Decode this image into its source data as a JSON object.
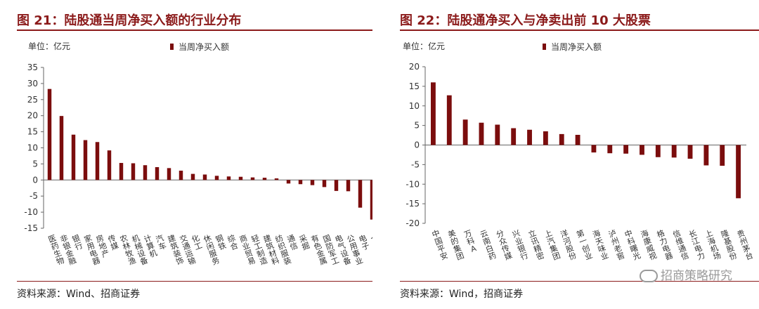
{
  "left": {
    "title": "图 21：陆股通当周净买入额的行业分布",
    "unit": "单位：亿元",
    "source": "资料来源：Wind、招商证券",
    "chart_data": {
      "type": "bar",
      "legend": [
        "当周净买入额"
      ],
      "legend_position": "top",
      "color": "#7b0d0d",
      "ylim": [
        -15,
        35
      ],
      "yticks": [
        -15,
        -10,
        -5,
        0,
        5,
        10,
        15,
        20,
        25,
        30,
        35
      ],
      "grid": false,
      "categories": [
        "医药生物",
        "非银金融",
        "银行",
        "家用电器",
        "房地产",
        "传媒",
        "农林牧渔",
        "机械设备",
        "计算机",
        "汽车",
        "建筑装饰",
        "交通运输",
        "化工",
        "休闲服务",
        "钢铁",
        "综合",
        "商业贸易",
        "轻工制造",
        "建筑材料",
        "纺织服装",
        "通信",
        "采掘",
        "有色金属",
        "国防军工",
        "电气设备",
        "公用事业",
        "电子",
        "食品饮料"
      ],
      "series": [
        {
          "name": "当周净买入额",
          "values": [
            28.3,
            19.9,
            14.1,
            12.4,
            11.8,
            9.2,
            5.3,
            5.2,
            4.6,
            4.0,
            3.7,
            2.9,
            1.9,
            1.7,
            1.3,
            1.1,
            1.0,
            0.8,
            0.7,
            0.5,
            -1.1,
            -1.3,
            -1.6,
            -2.2,
            -3.4,
            -3.5,
            -8.6,
            -12.3
          ]
        }
      ]
    }
  },
  "right": {
    "title": "图 22：陆股通净买入与净卖出前 10 大股票",
    "unit": "单位：亿元",
    "source": "资料来源：Wind，招商证券",
    "watermark": "招商策略研究",
    "chart_data": {
      "type": "bar",
      "legend": [
        "当周净买入额"
      ],
      "legend_position": "top",
      "color": "#7b0d0d",
      "ylim": [
        -20,
        20
      ],
      "yticks": [
        -20,
        -15,
        -10,
        -5,
        0,
        5,
        10,
        15,
        20
      ],
      "grid": false,
      "categories": [
        "中国平安",
        "美的集团",
        "万科A",
        "云南白药",
        "分众传媒",
        "兴业银行",
        "立讯精密",
        "上汽集团",
        "洋河股份",
        "第一创业",
        "海天味业",
        "泸州老窖",
        "中科曙光",
        "海康威视",
        "格力电器",
        "信维通信",
        "长江电力",
        "上海机场",
        "隆基股份",
        "贵州茅台"
      ],
      "series": [
        {
          "name": "当周净买入额",
          "values": [
            16.0,
            12.7,
            6.5,
            5.7,
            5.2,
            4.3,
            3.9,
            3.5,
            2.8,
            2.6,
            -1.9,
            -2.1,
            -2.2,
            -2.5,
            -3.1,
            -3.2,
            -3.5,
            -5.2,
            -5.3,
            -13.6
          ]
        }
      ]
    }
  }
}
